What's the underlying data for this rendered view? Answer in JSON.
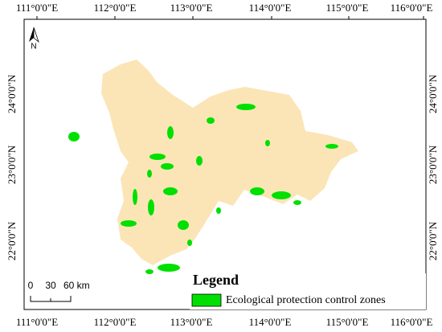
{
  "map": {
    "longitude_labels": [
      "111°0'0\"E",
      "112°0'0\"E",
      "113°0'0\"E",
      "114°0'0\"E",
      "115°0'0\"E",
      "116°0'0\"E"
    ],
    "latitude_labels": [
      "24°0'0\"N",
      "23°0'0\"N",
      "22°0'0\"N"
    ],
    "north_arrow": "N",
    "scale_bar": [
      "0",
      "30",
      "60 km"
    ],
    "legend": {
      "title": "Legend",
      "entry": "Ecological protection control zones"
    }
  }
}
